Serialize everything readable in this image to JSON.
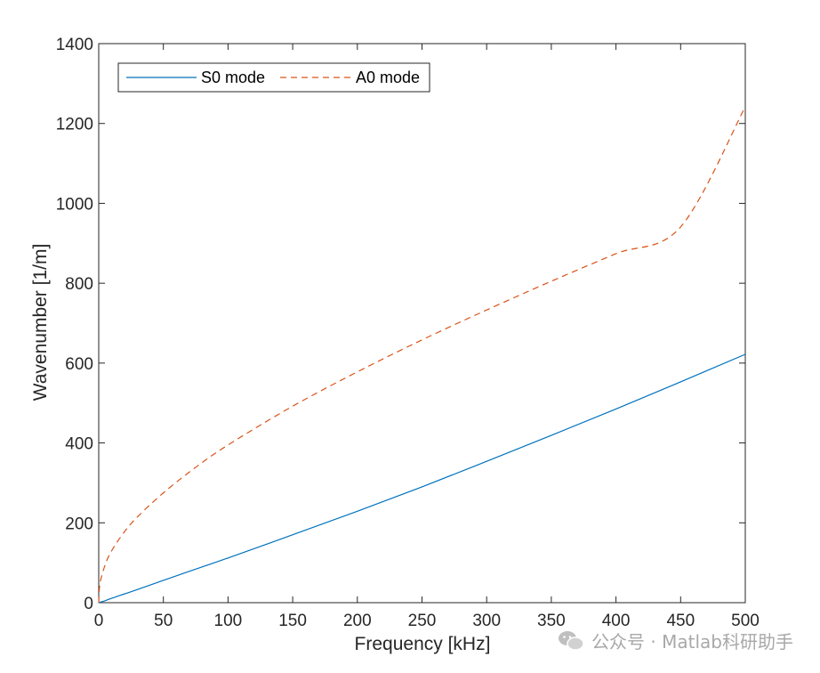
{
  "chart_data": {
    "type": "line",
    "title": "",
    "xlabel": "Frequency [kHz]",
    "ylabel": "Wavenumber [1/m]",
    "xlim": [
      0,
      500
    ],
    "ylim": [
      0,
      1400
    ],
    "xticks": [
      0,
      50,
      100,
      150,
      200,
      250,
      300,
      350,
      400,
      450,
      500
    ],
    "yticks": [
      0,
      200,
      400,
      600,
      800,
      1000,
      1200,
      1400
    ],
    "grid": false,
    "legend_position": "top-left",
    "x": [
      0,
      1,
      5,
      10,
      20,
      30,
      50,
      75,
      100,
      150,
      200,
      250,
      300,
      350,
      400,
      450,
      500
    ],
    "series": [
      {
        "name": "S0 mode",
        "style": "solid",
        "color": "#0072BD",
        "values": [
          0,
          1,
          5,
          11,
          22,
          33,
          56,
          84,
          112,
          170,
          229,
          290,
          354,
          419,
          485,
          553,
          622
        ]
      },
      {
        "name": "A0 mode",
        "style": "dashed",
        "color": "#D95319",
        "values": [
          0,
          48,
          95,
          130,
          178,
          215,
          275,
          339,
          395,
          492,
          578,
          658,
          733,
          805,
          874,
          941,
          1242
        ]
      }
    ]
  },
  "watermark": {
    "text": "公众号 · Matlab科研助手",
    "icon": "wechat-icon"
  }
}
